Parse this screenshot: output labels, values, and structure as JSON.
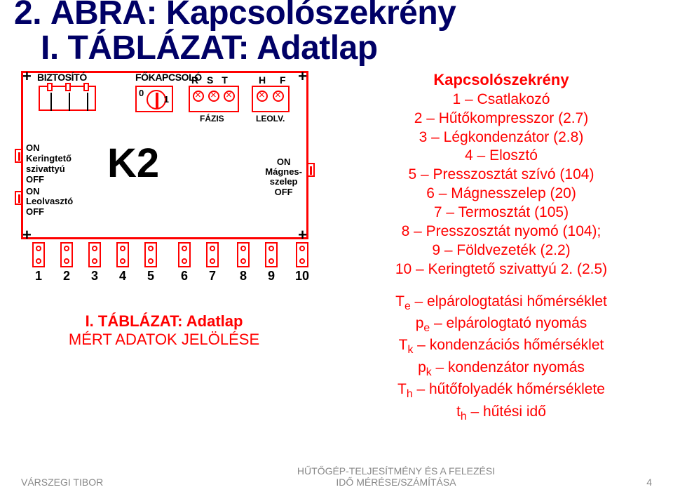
{
  "title_line1": "2. ÁBRA: Kapcsolószekrény",
  "title_line2": "I. TÁBLÁZAT: Adatlap",
  "schematic": {
    "biztosito": "BIZTOSÍTÓ",
    "fokapcsolo": "FŐKAPCSOLÓ",
    "msw_0": "0",
    "msw_1": "1",
    "phase_letters": "R S T",
    "leolv_letters": "H F",
    "phase_sub": "FÁZIS",
    "leolv_sub": "LEOLV.",
    "k2": "K2",
    "left_on1": "ON",
    "left_keringteto1": "Keringtető",
    "left_keringteto2": "szivattyú",
    "left_off1": "OFF",
    "left_on2": "ON",
    "left_leolvaszto": "Leolvasztó",
    "left_off2": "OFF",
    "mag_on": "ON",
    "mag_l1": "Mágnes-",
    "mag_l2": "szelep",
    "mag_off": "OFF",
    "terminals": [
      "1",
      "2",
      "3",
      "4",
      "5",
      "6",
      "7",
      "8",
      "9",
      "10"
    ],
    "terminal_x": [
      10,
      50,
      90,
      130,
      170,
      218,
      258,
      302,
      342,
      386
    ]
  },
  "caption_bold": "I. TÁBLÁZAT: Adatlap",
  "caption_rest": "MÉRT ADATOK JELÖLÉSE",
  "legend": {
    "title": "Kapcsolószekrény",
    "items": [
      "1 – Csatlakozó",
      "2 – Hűtőkompresszor (2.7)",
      "3 – Légkondenzátor (2.8)",
      "4 – Elosztó",
      "5 – Presszosztát szívó (104)",
      "6 – Mágnesszelep (20)",
      "7 – Termosztát (105)",
      "8 – Presszosztát nyomó (104);",
      "9 – Földvezeték (2.2)",
      "10 – Keringtető szivattyú 2. (2.5)"
    ]
  },
  "symbols": {
    "Te": "T",
    "Te_sub": "e",
    "Te_txt": " – elpárologtatási hőmérséklet",
    "pe": "p",
    "pe_sub": "e",
    "pe_txt": " – elpárologtató nyomás",
    "Tk": "T",
    "Tk_sub": "k",
    "Tk_txt": " – kondenzációs hőmérséklet",
    "pk": "p",
    "pk_sub": "k",
    "pk_txt": " – kondenzátor nyomás",
    "Th": "T",
    "Th_sub": "h",
    "Th_txt": " – hűtőfolyadék hőmérséklete",
    "th": "t",
    "th_sub": "h",
    "th_txt": " – hűtési idő"
  },
  "footer": {
    "author": "VÁRSZEGI TIBOR",
    "mid1": "HŰTŐGÉP-TELJESÍTMÉNY ÉS A FELEZÉSI",
    "mid2": "IDŐ MÉRÉSE/SZÁMÍTÁSA",
    "page": "4"
  },
  "colors": {
    "title": "#000066",
    "accent": "#ff0000",
    "footer": "#888888"
  }
}
